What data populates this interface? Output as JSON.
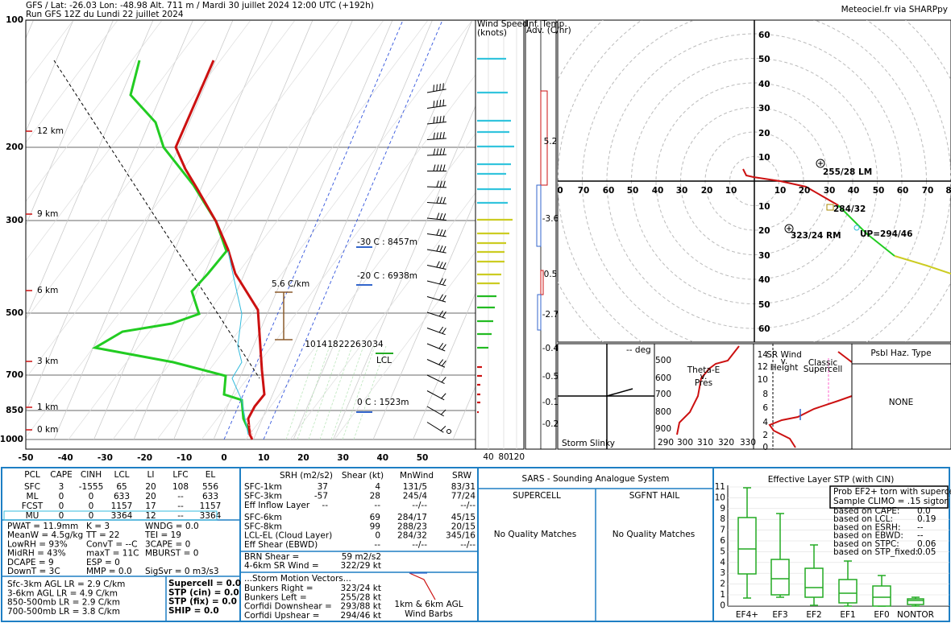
{
  "header": {
    "line1": "GFS / Lat: -26.03 Lon: -48.98 Alt. 711 m / Mardi 30 juillet 2024 12:00 UTC (+192h)",
    "line2": "Run GFS 12Z du Lundi 22 juillet 2024",
    "credit": "Meteociel.fr via SHARPpy"
  },
  "skewt": {
    "pressures": [
      "100",
      "200",
      "300",
      "500",
      "700",
      "850",
      "1000"
    ],
    "heights": [
      "12 km",
      "9 km",
      "6 km",
      "3 km",
      "1 km",
      "0 km"
    ],
    "temps": [
      "-50",
      "-40",
      "-30",
      "-20",
      "-10",
      "0",
      "10",
      "20",
      "30",
      "40",
      "50"
    ],
    "mixing_ratios": [
      "10",
      "14",
      "18",
      "22",
      "26",
      "30",
      "34"
    ],
    "levels": [
      "-30 C : 8457m",
      "-20 C : 6938m",
      "0 C : 1523m"
    ],
    "lapse_rate": "5.6 C/km",
    "lcl": "LCL"
  },
  "wind_speed": {
    "title": "Wind Speed",
    "units": "(knots)",
    "ticks": [
      "40",
      "80",
      "120"
    ]
  },
  "temp_adv": {
    "title": "Inf. Temp.",
    "subtitle": "Adv. (C/hr)",
    "values": [
      "5.2",
      "-3.6",
      "0.5",
      "-2.7",
      "-0.4",
      "-0.5",
      "-0.1",
      "-0.2"
    ]
  },
  "hodograph": {
    "y_up": [
      "60",
      "50",
      "40",
      "30",
      "20",
      "10"
    ],
    "y_down": [
      "10",
      "20",
      "30",
      "40",
      "50",
      "60"
    ],
    "x_left": [
      "0",
      "70",
      "60",
      "50",
      "40",
      "30",
      "20",
      "10"
    ],
    "x_right": [
      "10",
      "20",
      "30",
      "40",
      "50",
      "60",
      "70",
      "8"
    ],
    "lm": "255/28 LM",
    "mean": "284/32",
    "rm": "323/24 RM",
    "up": "UP=294/46"
  },
  "slinky": {
    "deg": "-- deg",
    "title": "Storm Slinky"
  },
  "theta_e": {
    "title": [
      "Theta-E",
      "v.",
      "Pres"
    ],
    "pressures": [
      "500",
      "600",
      "700",
      "800",
      "900"
    ],
    "temps": [
      "290",
      "300",
      "310",
      "320",
      "330"
    ]
  },
  "sr_wind": {
    "title": [
      "SR Wind",
      "v.",
      "Height"
    ],
    "heights": [
      "14",
      "12",
      "10",
      "8",
      "6",
      "4",
      "2",
      "0"
    ],
    "label": [
      "Classic",
      "Supercell"
    ]
  },
  "hazard": {
    "title": "Psbl Haz. Type",
    "value": "NONE"
  },
  "parcels": {
    "header": [
      "PCL",
      "CAPE",
      "CINH",
      "LCL",
      "LI",
      "LFC",
      "EL"
    ],
    "rows": [
      [
        "SFC",
        "3",
        "-1555",
        "65",
        "20",
        "108",
        "556"
      ],
      [
        "ML",
        "0",
        "0",
        "633",
        "20",
        "--",
        "633"
      ],
      [
        "FCST",
        "0",
        "0",
        "1157",
        "17",
        "--",
        "1157"
      ],
      [
        "MU",
        "0",
        "0",
        "3364",
        "12",
        "--",
        "3364"
      ]
    ]
  },
  "indices": [
    [
      "PWAT = 11.9mm",
      "K = 3",
      "WNDG = 0.0"
    ],
    [
      "MeanW = 4.5g/kg",
      "TT = 22",
      "TEI = 19"
    ],
    [
      "LowRH = 93%",
      "ConvT = --C",
      "3CAPE = 0"
    ],
    [
      "MidRH = 43%",
      "maxT = 11C",
      "MBURST = 0"
    ],
    [
      "DCAPE = 9",
      "ESP = 0"
    ],
    [
      "DownT = 3C",
      "MMP = 0.0",
      "SigSvr = 0 m3/s3"
    ]
  ],
  "lapse_rates": [
    "Sfc-3km AGL LR = 2.9 C/km",
    "3-6km AGL LR = 4.9 C/km",
    "850-500mb LR = 2.9 C/km",
    "700-500mb LR = 3.8 C/km"
  ],
  "composite": [
    "Supercell = 0.0",
    "STP (cin) = 0.0",
    "STP (fix) = 0.0",
    "SHIP = 0.0"
  ],
  "kinematics": {
    "header": [
      "SRH (m2/s2)",
      "Shear (kt)",
      "MnWind",
      "SRW"
    ],
    "rows": [
      [
        "SFC-1km",
        "37",
        "4",
        "131/5",
        "83/31"
      ],
      [
        "SFC-3km",
        "-57",
        "28",
        "245/4",
        "77/24"
      ],
      [
        "Eff Inflow Layer",
        "--",
        "--",
        "--/--",
        "--/--"
      ]
    ],
    "rows_b": [
      [
        "SFC-6km",
        "69",
        "284/17",
        "45/15"
      ],
      [
        "SFC-8km",
        "99",
        "288/23",
        "20/15"
      ],
      [
        "LCL-EL (Cloud Layer)",
        "0",
        "284/32",
        "345/16"
      ],
      [
        "Eff Shear (EBWD)",
        "--",
        "--/--",
        "--/--"
      ]
    ],
    "brn": [
      "BRN Shear =",
      "59 m2/s2"
    ],
    "srw46": [
      "4-6km SR Wind =",
      "322/29 kt"
    ],
    "motion_title": "...Storm Motion Vectors...",
    "motions": [
      [
        "Bunkers Right =",
        "323/24 kt"
      ],
      [
        "Bunkers Left =",
        "255/28 kt"
      ],
      [
        "Corfidi Downshear =",
        "293/88 kt"
      ],
      [
        "Corfidi Upshear =",
        "294/46 kt"
      ]
    ],
    "barbs_label": [
      "1km & 6km AGL",
      "Wind Barbs"
    ]
  },
  "sars": {
    "title": "SARS - Sounding Analogue System",
    "supercell": "SUPERCELL",
    "hail": "SGFNT HAIL",
    "sup_result": "No Quality Matches",
    "hail_result": "No Quality Matches"
  },
  "stp": {
    "title": "Effective Layer STP (with CIN)",
    "yticks": [
      "11",
      "10",
      "9",
      "8",
      "7",
      "6",
      "5",
      "4",
      "3",
      "2",
      "1",
      "0"
    ],
    "categories": [
      "EF4+",
      "EF3",
      "EF2",
      "EF1",
      "EF0",
      "NONTOR"
    ],
    "legend": [
      "Prob EF2+ torn with supercell",
      "Sample CLIMO = .15 sigtor"
    ],
    "probs": [
      [
        "based on CAPE:",
        "0.0"
      ],
      [
        "based on LCL:",
        "0.19"
      ],
      [
        "based on ESRH:",
        "--"
      ],
      [
        "based on EBWD:",
        "--"
      ],
      [
        "based on STPC:",
        "0.06"
      ],
      [
        "based on STP_fixed:",
        "0.05"
      ]
    ]
  }
}
